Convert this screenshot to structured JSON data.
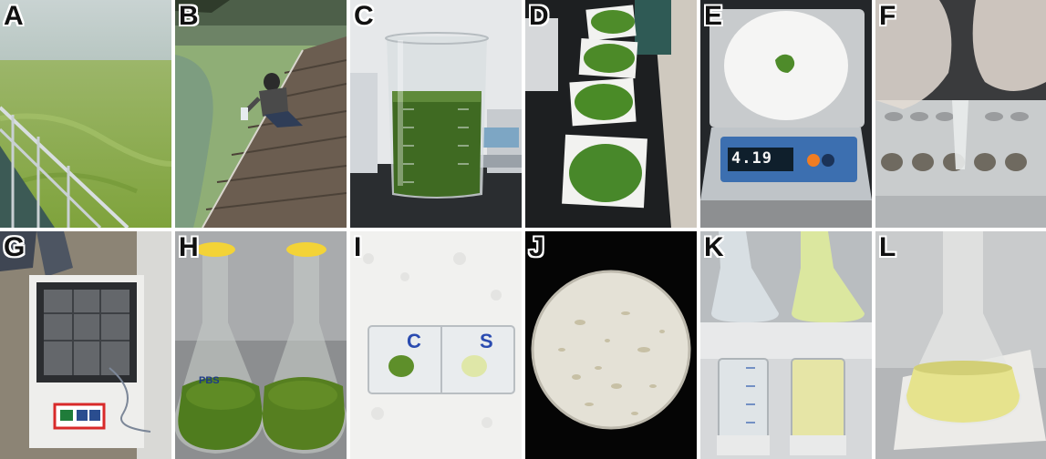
{
  "panels": [
    {
      "letter": "A",
      "icon": "lake-bloom-photo"
    },
    {
      "letter": "B",
      "icon": "sampling-dock-photo"
    },
    {
      "letter": "C",
      "icon": "beaker-photo"
    },
    {
      "letter": "D",
      "icon": "filter-paper-photo"
    },
    {
      "letter": "E",
      "icon": "balance-photo",
      "display": "4.19"
    },
    {
      "letter": "F",
      "icon": "pipette-tube-photo"
    },
    {
      "letter": "G",
      "icon": "shaker-incubator-photo"
    },
    {
      "letter": "H",
      "icon": "flasks-photo",
      "flask_label": "PBS"
    },
    {
      "letter": "I",
      "icon": "slide-photo",
      "drop_labels": [
        "C",
        "S"
      ]
    },
    {
      "letter": "J",
      "icon": "microscope-field-photo"
    },
    {
      "letter": "K",
      "icon": "flasks-tubes-photo"
    },
    {
      "letter": "L",
      "icon": "conical-flask-photo"
    }
  ],
  "colors": {
    "bloom_green": "#6f9a3a",
    "label_text": "#111111",
    "label_outline": "#ffffff"
  }
}
